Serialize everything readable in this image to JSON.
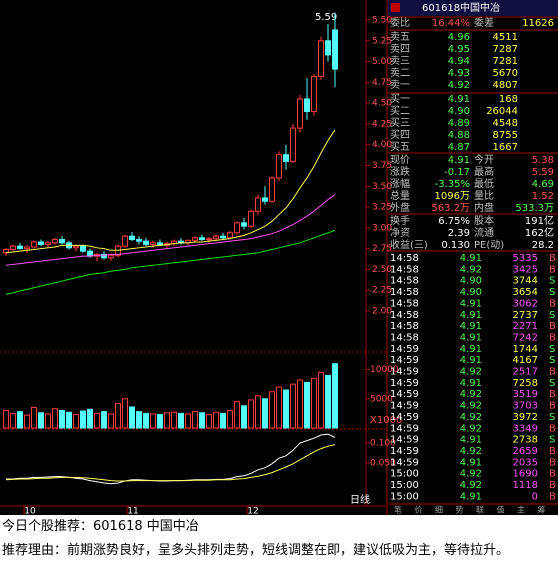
{
  "chart_data": {
    "type": "candlestick",
    "annotation": "5.59",
    "x_labels": [
      "10",
      "11",
      "12"
    ],
    "period_label": "日线",
    "ylim": [
      2.0,
      5.5
    ],
    "yticks": [
      {
        "value": 5.5,
        "label": "5.50"
      },
      5.25,
      {
        "value": 5.0,
        "label": "5.00"
      },
      4.75,
      {
        "value": 4.5,
        "label": "4.50"
      },
      4.25,
      {
        "value": 4.0,
        "label": "4.00"
      },
      3.75,
      {
        "value": 3.5,
        "label": "3.50"
      },
      3.25,
      {
        "value": 3.0,
        "label": "3.00"
      },
      2.75,
      {
        "value": 2.5,
        "label": "2.50"
      },
      2.25,
      {
        "value": 2.0,
        "label": "2.00"
      }
    ],
    "up_color": "#ff3c3c",
    "down_color": "#54fcfc",
    "ohlc": [
      [
        2.7,
        2.76,
        2.66,
        2.74
      ],
      [
        2.74,
        2.8,
        2.72,
        2.78
      ],
      [
        2.78,
        2.82,
        2.74,
        2.75
      ],
      [
        2.75,
        2.79,
        2.7,
        2.77
      ],
      [
        2.77,
        2.85,
        2.75,
        2.83
      ],
      [
        2.83,
        2.86,
        2.78,
        2.8
      ],
      [
        2.8,
        2.84,
        2.76,
        2.82
      ],
      [
        2.82,
        2.88,
        2.8,
        2.86
      ],
      [
        2.86,
        2.9,
        2.8,
        2.82
      ],
      [
        2.82,
        2.84,
        2.74,
        2.76
      ],
      [
        2.76,
        2.8,
        2.72,
        2.78
      ],
      [
        2.78,
        2.8,
        2.7,
        2.72
      ],
      [
        2.72,
        2.75,
        2.64,
        2.66
      ],
      [
        2.66,
        2.7,
        2.6,
        2.68
      ],
      [
        2.68,
        2.72,
        2.62,
        2.64
      ],
      [
        2.64,
        2.69,
        2.6,
        2.67
      ],
      [
        2.67,
        2.8,
        2.65,
        2.78
      ],
      [
        2.78,
        2.92,
        2.76,
        2.9
      ],
      [
        2.9,
        2.95,
        2.84,
        2.86
      ],
      [
        2.86,
        2.9,
        2.8,
        2.84
      ],
      [
        2.84,
        2.88,
        2.78,
        2.8
      ],
      [
        2.8,
        2.84,
        2.76,
        2.82
      ],
      [
        2.82,
        2.86,
        2.78,
        2.79
      ],
      [
        2.79,
        2.83,
        2.75,
        2.81
      ],
      [
        2.81,
        2.86,
        2.78,
        2.84
      ],
      [
        2.84,
        2.88,
        2.8,
        2.82
      ],
      [
        2.82,
        2.86,
        2.79,
        2.85
      ],
      [
        2.85,
        2.9,
        2.82,
        2.88
      ],
      [
        2.88,
        2.92,
        2.84,
        2.86
      ],
      [
        2.86,
        2.89,
        2.82,
        2.87
      ],
      [
        2.87,
        2.92,
        2.85,
        2.9
      ],
      [
        2.9,
        2.94,
        2.86,
        2.88
      ],
      [
        2.88,
        2.96,
        2.86,
        2.94
      ],
      [
        2.94,
        3.08,
        2.92,
        3.06
      ],
      [
        3.06,
        3.12,
        2.98,
        3.02
      ],
      [
        3.02,
        3.22,
        3.0,
        3.2
      ],
      [
        3.2,
        3.4,
        3.16,
        3.36
      ],
      [
        3.36,
        3.5,
        3.28,
        3.32
      ],
      [
        3.32,
        3.62,
        3.3,
        3.6
      ],
      [
        3.6,
        3.92,
        3.56,
        3.88
      ],
      [
        3.88,
        4.0,
        3.7,
        3.8
      ],
      [
        3.8,
        4.25,
        3.78,
        4.2
      ],
      [
        4.2,
        4.6,
        4.15,
        4.55
      ],
      [
        4.55,
        4.8,
        4.3,
        4.4
      ],
      [
        4.4,
        4.85,
        4.35,
        4.82
      ],
      [
        4.82,
        5.3,
        4.78,
        5.25
      ],
      [
        5.25,
        5.45,
        5.0,
        5.08
      ],
      [
        5.38,
        5.59,
        4.69,
        4.91
      ]
    ],
    "ma_lines": [
      {
        "color": "#ffff54",
        "values": [
          2.7,
          2.71,
          2.72,
          2.73,
          2.74,
          2.75,
          2.76,
          2.77,
          2.79,
          2.79,
          2.79,
          2.79,
          2.78,
          2.76,
          2.75,
          2.73,
          2.73,
          2.74,
          2.75,
          2.76,
          2.77,
          2.78,
          2.79,
          2.8,
          2.81,
          2.82,
          2.82,
          2.83,
          2.83,
          2.84,
          2.85,
          2.86,
          2.87,
          2.89,
          2.91,
          2.94,
          2.98,
          3.02,
          3.08,
          3.16,
          3.24,
          3.35,
          3.48,
          3.6,
          3.74,
          3.9,
          4.05,
          4.18
        ]
      },
      {
        "color": "#ff54ff",
        "values": [
          2.55,
          2.56,
          2.57,
          2.58,
          2.59,
          2.6,
          2.61,
          2.62,
          2.63,
          2.64,
          2.65,
          2.66,
          2.66,
          2.67,
          2.67,
          2.68,
          2.68,
          2.69,
          2.7,
          2.71,
          2.72,
          2.73,
          2.74,
          2.75,
          2.76,
          2.77,
          2.78,
          2.79,
          2.8,
          2.81,
          2.82,
          2.83,
          2.84,
          2.85,
          2.86,
          2.87,
          2.89,
          2.91,
          2.93,
          2.96,
          3.0,
          3.04,
          3.09,
          3.14,
          3.2,
          3.27,
          3.34,
          3.4
        ]
      },
      {
        "color": "#00e600",
        "values": [
          2.2,
          2.22,
          2.24,
          2.26,
          2.28,
          2.3,
          2.32,
          2.34,
          2.36,
          2.38,
          2.4,
          2.42,
          2.44,
          2.45,
          2.46,
          2.48,
          2.49,
          2.5,
          2.52,
          2.53,
          2.54,
          2.55,
          2.56,
          2.57,
          2.58,
          2.59,
          2.6,
          2.61,
          2.62,
          2.63,
          2.64,
          2.65,
          2.66,
          2.67,
          2.68,
          2.69,
          2.7,
          2.72,
          2.74,
          2.76,
          2.78,
          2.8,
          2.82,
          2.85,
          2.88,
          2.91,
          2.94,
          2.97
        ]
      }
    ],
    "volume": {
      "ylim": [
        0,
        13000
      ],
      "yticks": [
        10000,
        5000
      ],
      "unit_label": "X1000",
      "values": [
        3000,
        2500,
        2800,
        2200,
        3500,
        2600,
        2400,
        3300,
        3000,
        2700,
        2300,
        2900,
        3200,
        2500,
        2800,
        2400,
        4200,
        5000,
        3600,
        2800,
        2500,
        2400,
        2300,
        2600,
        2700,
        2500,
        2400,
        2800,
        2600,
        2300,
        2700,
        2500,
        3000,
        4500,
        3800,
        4800,
        5500,
        5000,
        6200,
        7000,
        6500,
        7500,
        8200,
        7800,
        8500,
        9500,
        9000,
        11000
      ]
    },
    "macd": {
      "ylim": [
        -0.055,
        0.13
      ],
      "yticks": [
        {
          "value": 0.1,
          "label": "0.100"
        },
        {
          "value": 0.05,
          "label": "0.050"
        }
      ],
      "lines": [
        {
          "color": "#ffffff",
          "values": [
            0.01,
            0.01,
            0.012,
            0.012,
            0.014,
            0.014,
            0.015,
            0.016,
            0.016,
            0.014,
            0.012,
            0.01,
            0.006,
            0.003,
            0.0,
            -0.002,
            0.0,
            0.005,
            0.008,
            0.008,
            0.007,
            0.006,
            0.005,
            0.005,
            0.006,
            0.006,
            0.007,
            0.008,
            0.008,
            0.008,
            0.009,
            0.009,
            0.011,
            0.016,
            0.018,
            0.024,
            0.033,
            0.038,
            0.048,
            0.062,
            0.068,
            0.082,
            0.1,
            0.106,
            0.112,
            0.12,
            0.122,
            0.114
          ]
        },
        {
          "color": "#ffff54",
          "values": [
            0.008,
            0.009,
            0.01,
            0.01,
            0.011,
            0.012,
            0.012,
            0.013,
            0.014,
            0.014,
            0.014,
            0.013,
            0.012,
            0.01,
            0.008,
            0.006,
            0.005,
            0.005,
            0.006,
            0.006,
            0.006,
            0.006,
            0.006,
            0.006,
            0.006,
            0.006,
            0.006,
            0.007,
            0.007,
            0.007,
            0.008,
            0.008,
            0.008,
            0.01,
            0.011,
            0.014,
            0.017,
            0.021,
            0.026,
            0.033,
            0.04,
            0.048,
            0.058,
            0.068,
            0.078,
            0.086,
            0.092,
            0.096
          ]
        }
      ]
    }
  },
  "panel": {
    "code": "601618",
    "name": "中国中冶",
    "ratio": {
      "label": "委比",
      "value": "16.44%",
      "label2": "委差",
      "value2": "11626"
    },
    "asks": [
      {
        "label": "卖五",
        "price": "4.96",
        "volume": "4511"
      },
      {
        "label": "卖四",
        "price": "4.95",
        "volume": "7287"
      },
      {
        "label": "卖三",
        "price": "4.94",
        "volume": "7281"
      },
      {
        "label": "卖二",
        "price": "4.93",
        "volume": "5670"
      },
      {
        "label": "卖一",
        "price": "4.92",
        "volume": "4807"
      }
    ],
    "bids": [
      {
        "label": "买一",
        "price": "4.91",
        "volume": "168"
      },
      {
        "label": "买二",
        "price": "4.90",
        "volume": "26044"
      },
      {
        "label": "买三",
        "price": "4.89",
        "volume": "4548"
      },
      {
        "label": "买四",
        "price": "4.88",
        "volume": "8755"
      },
      {
        "label": "买五",
        "price": "4.87",
        "volume": "1667"
      }
    ],
    "quotes": [
      {
        "label": "现价",
        "value": "4.91",
        "color": "#54fc54",
        "label2": "今开",
        "value2": "5.38",
        "color2": "#ff5454"
      },
      {
        "label": "涨跌",
        "value": "-0.17",
        "color": "#54fc54",
        "label2": "最高",
        "value2": "5.59",
        "color2": "#ff5454"
      },
      {
        "label": "涨幅",
        "value": "-3.35%",
        "color": "#54fc54",
        "label2": "最低",
        "value2": "4.69",
        "color2": "#54fc54"
      },
      {
        "label": "总量",
        "value": "1096万",
        "color": "#ffff54",
        "label2": "量比",
        "value2": "1.52",
        "color2": "#ff5454"
      },
      {
        "label": "外盘",
        "value": "563.2万",
        "color": "#ff5454",
        "label2": "内盘",
        "value2": "533.3万",
        "color2": "#54fc54"
      }
    ],
    "stats": [
      {
        "label": "换手",
        "value": "6.75%",
        "label2": "股本",
        "value2": "191亿"
      },
      {
        "label": "净资",
        "value": "2.39",
        "label2": "流通",
        "value2": "162亿"
      },
      {
        "label": "收益(三)",
        "value": "0.130",
        "label2": "PE(动)",
        "value2": "28.2"
      }
    ],
    "ticks": [
      [
        "14:58",
        "4.91",
        "5335",
        "B"
      ],
      [
        "14:58",
        "4.92",
        "3425",
        "B"
      ],
      [
        "14:58",
        "4.90",
        "3744",
        "S"
      ],
      [
        "14:58",
        "4.90",
        "3654",
        "S"
      ],
      [
        "14:58",
        "4.91",
        "3062",
        "B"
      ],
      [
        "14:58",
        "4.91",
        "2737",
        "S"
      ],
      [
        "14:58",
        "4.91",
        "2271",
        "B"
      ],
      [
        "14:58",
        "4.91",
        "7242",
        "B"
      ],
      [
        "14:59",
        "4.91",
        "1744",
        "S"
      ],
      [
        "14:59",
        "4.91",
        "4167",
        "S"
      ],
      [
        "14:59",
        "4.92",
        "2517",
        "B"
      ],
      [
        "14:59",
        "4.91",
        "7258",
        "S"
      ],
      [
        "14:59",
        "4.92",
        "3519",
        "B"
      ],
      [
        "14:59",
        "4.92",
        "3703",
        "B"
      ],
      [
        "14:59",
        "4.92",
        "3972",
        "S"
      ],
      [
        "14:59",
        "4.92",
        "3349",
        "B"
      ],
      [
        "14:59",
        "4.91",
        "2738",
        "S"
      ],
      [
        "14:59",
        "4.92",
        "2659",
        "B"
      ],
      [
        "14:59",
        "4.91",
        "2035",
        "B"
      ],
      [
        "15:00",
        "4.92",
        "1690",
        "B"
      ],
      [
        "15:00",
        "4.92",
        "1118",
        "B"
      ],
      [
        "15:00",
        "4.91",
        "0",
        "B"
      ]
    ],
    "tabs": [
      "笔",
      "价",
      "细",
      "势",
      "联",
      "值",
      "主",
      "筹"
    ]
  },
  "caption": {
    "line1": "今日个股推荐：601618 中国中冶",
    "line2": "推荐理由：前期涨势良好，呈多头排列走势，短线调整在即，建议低吸为主，等待拉升。"
  }
}
